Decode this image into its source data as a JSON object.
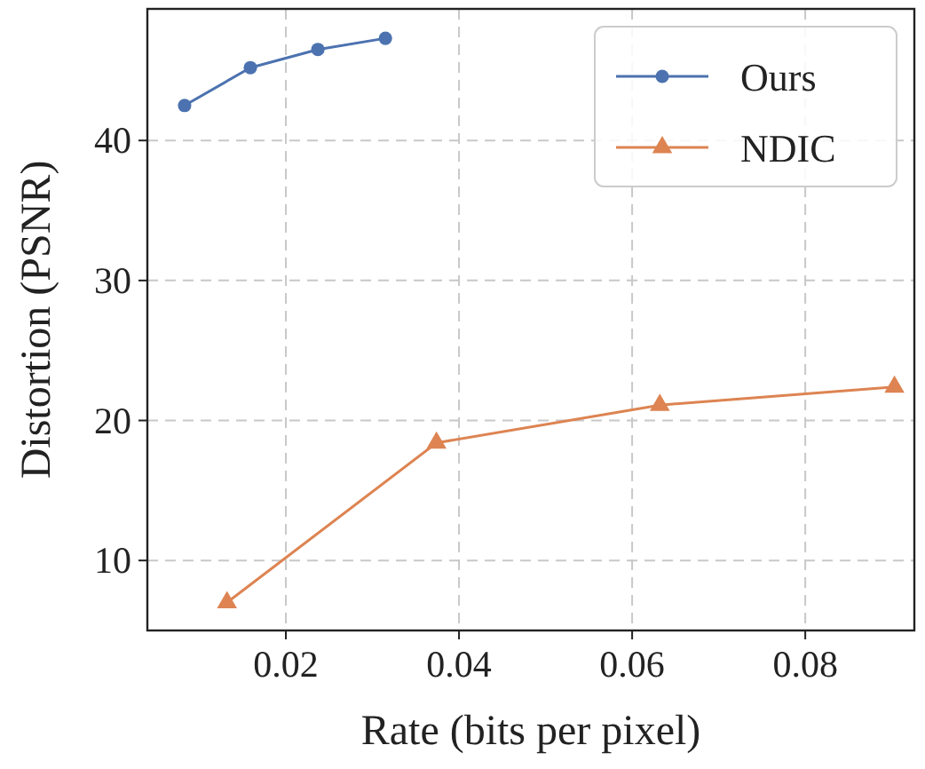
{
  "chart_data": {
    "type": "line",
    "xlabel": "Rate (bits per pixel)",
    "ylabel": "Distortion (PSNR)",
    "xlim": [
      0.004,
      0.0926
    ],
    "ylim": [
      5,
      49.4
    ],
    "xticks": [
      0.02,
      0.04,
      0.06,
      0.08
    ],
    "yticks": [
      10,
      20,
      30,
      40
    ],
    "grid": true,
    "legend": "top right",
    "series": [
      {
        "name": "Ours",
        "color": "#4c72b0",
        "marker": "circle",
        "x": [
          0.0083,
          0.0159,
          0.0237,
          0.0315
        ],
        "values": [
          42.5,
          45.2,
          46.5,
          47.3
        ]
      },
      {
        "name": "NDIC",
        "color": "#dd8452",
        "marker": "triangle",
        "x": [
          0.0132,
          0.0374,
          0.0632,
          0.0903
        ],
        "values": [
          7.0,
          18.4,
          21.1,
          22.4
        ]
      }
    ]
  }
}
